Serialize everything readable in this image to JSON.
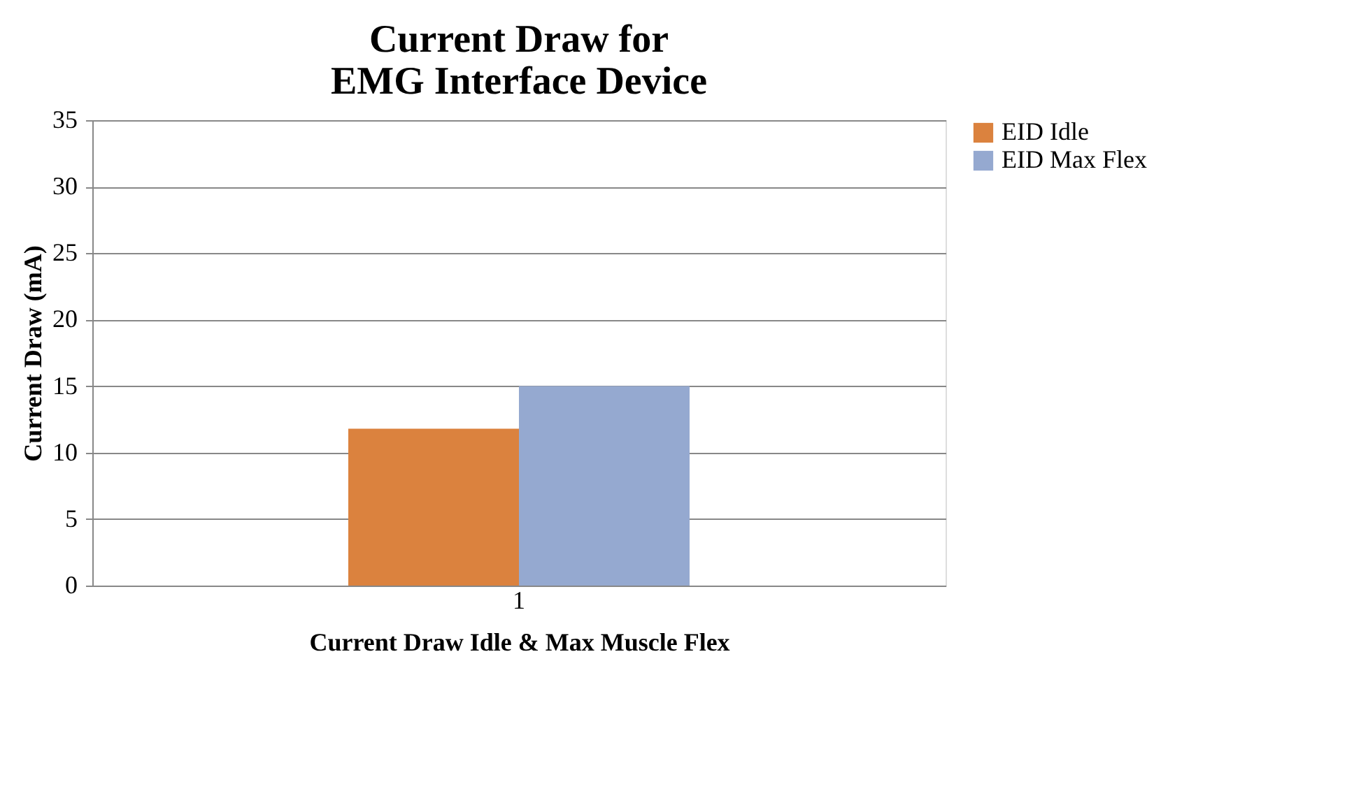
{
  "chart_data": {
    "type": "bar",
    "title": [
      "Current Draw for",
      "EMG Interface Device"
    ],
    "xlabel": "Current Draw Idle & Max Muscle Flex",
    "ylabel": "Current Draw (mA)",
    "categories": [
      "1"
    ],
    "series": [
      {
        "name": "EID Idle",
        "color": "#db823e",
        "values": [
          11.8
        ]
      },
      {
        "name": "EID Max Flex",
        "color": "#95a9d0",
        "values": [
          15
        ]
      }
    ],
    "ylim": [
      0,
      35
    ],
    "yticks": [
      0,
      5,
      10,
      15,
      20,
      25,
      30,
      35
    ],
    "grid": "y",
    "legend": "right"
  }
}
